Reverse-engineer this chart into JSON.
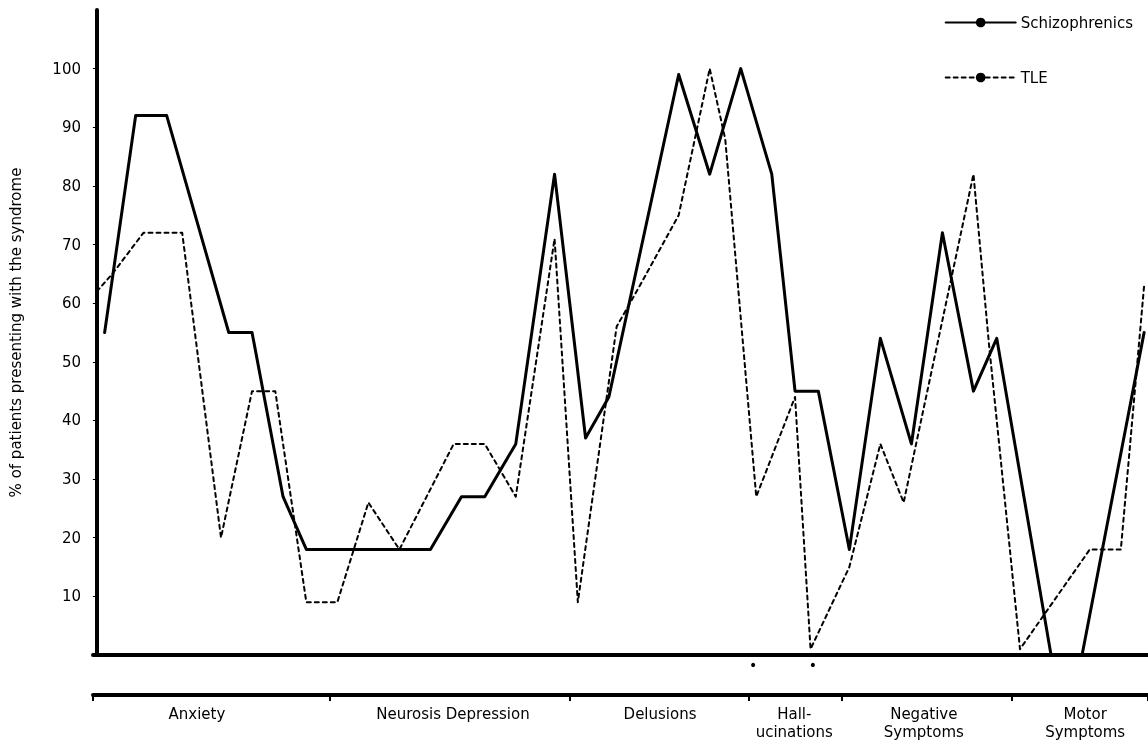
{
  "chart_data": {
    "type": "line",
    "ylabel": "% of patients presenting with the syndrome",
    "categories": [
      null,
      null,
      null,
      null,
      null,
      null,
      null,
      null,
      null,
      null,
      null,
      null,
      null,
      null,
      null,
      null,
      null,
      null,
      null,
      null,
      null,
      null,
      null,
      null,
      null,
      null,
      null,
      null,
      null,
      null,
      null,
      null,
      null,
      null,
      null,
      null,
      null,
      null,
      null,
      null,
      null,
      null,
      null,
      null,
      null,
      null,
      null,
      null,
      null,
      null,
      null,
      null,
      null,
      null,
      null,
      null,
      null,
      null,
      null,
      null,
      null,
      null,
      null,
      null,
      null,
      null,
      null,
      null,
      null,
      null,
      null,
      null,
      null,
      null,
      null,
      null,
      null,
      null,
      null,
      null,
      null,
      null,
      null,
      null,
      null,
      null,
      null,
      null,
      null,
      null,
      null,
      null,
      null,
      null,
      null,
      null,
      null,
      null,
      null,
      null,
      null,
      null,
      null,
      null,
      null,
      null,
      null,
      null,
      null,
      null,
      null,
      null,
      null,
      null,
      null,
      null,
      null,
      null,
      null,
      null,
      null,
      null,
      null,
      null,
      null,
      null,
      null,
      null,
      null,
      null,
      null,
      null,
      null,
      null,
      null,
      null
    ],
    "series": [
      {
        "name": "Schizophrenics",
        "color": "#000000",
        "line_style": "solid",
        "values": [
          null,
          55,
          null,
          null,
          null,
          92,
          null,
          null,
          null,
          92,
          null,
          null,
          null,
          null,
          null,
          null,
          null,
          55,
          null,
          null,
          55,
          null,
          null,
          null,
          27,
          null,
          null,
          18,
          null,
          null,
          null,
          null,
          null,
          null,
          null,
          null,
          null,
          null,
          null,
          null,
          null,
          null,
          null,
          18,
          null,
          null,
          null,
          27,
          null,
          null,
          27,
          null,
          null,
          null,
          36,
          null,
          null,
          null,
          null,
          82,
          null,
          null,
          null,
          37,
          null,
          null,
          44,
          null,
          null,
          null,
          null,
          null,
          null,
          null,
          null,
          99,
          null,
          null,
          null,
          82,
          null,
          null,
          null,
          100,
          null,
          null,
          null,
          82,
          null,
          null,
          45,
          null,
          null,
          45,
          null,
          null,
          null,
          18,
          null,
          null,
          null,
          54,
          null,
          null,
          null,
          36,
          null,
          null,
          null,
          72,
          null,
          null,
          null,
          45,
          null,
          null,
          54,
          null,
          null,
          null,
          null,
          null,
          null,
          0,
          null,
          null,
          null,
          0,
          null,
          null,
          null,
          null,
          null,
          null,
          null,
          55
        ]
      },
      {
        "name": "TLE",
        "color": "#000000",
        "line_style": "dashed",
        "values": [
          62,
          null,
          65,
          null,
          null,
          null,
          72,
          null,
          null,
          null,
          null,
          72,
          null,
          null,
          null,
          null,
          20,
          null,
          null,
          null,
          45,
          null,
          null,
          45,
          null,
          null,
          null,
          9,
          null,
          null,
          null,
          9,
          null,
          null,
          null,
          26,
          null,
          null,
          null,
          18,
          null,
          null,
          null,
          null,
          null,
          null,
          36,
          null,
          null,
          null,
          36,
          null,
          null,
          null,
          27,
          null,
          null,
          null,
          null,
          71,
          null,
          null,
          9,
          null,
          null,
          null,
          null,
          56,
          null,
          null,
          63,
          null,
          null,
          null,
          null,
          75,
          null,
          null,
          null,
          100,
          null,
          88,
          null,
          null,
          null,
          27,
          null,
          null,
          null,
          null,
          44,
          null,
          1,
          null,
          null,
          null,
          null,
          15,
          null,
          null,
          null,
          36,
          null,
          null,
          26,
          null,
          null,
          null,
          null,
          null,
          null,
          null,
          null,
          82,
          null,
          53,
          null,
          null,
          null,
          1,
          null,
          null,
          null,
          null,
          null,
          null,
          null,
          null,
          18,
          null,
          null,
          null,
          18,
          null,
          null,
          63
        ]
      }
    ],
    "ylim": [
      0,
      110
    ],
    "yticks": [
      10,
      20,
      30,
      40,
      50,
      60,
      70,
      80,
      90,
      100
    ],
    "tick_labels": "y",
    "grid": false,
    "legend": "top right",
    "annotations": [
      "Anxiety",
      "Neurosis Depression",
      "Delusions",
      "Hall-\nucinations",
      "Negative\nSymptoms",
      "Motor\nSymptoms",
      "•",
      "•"
    ]
  }
}
